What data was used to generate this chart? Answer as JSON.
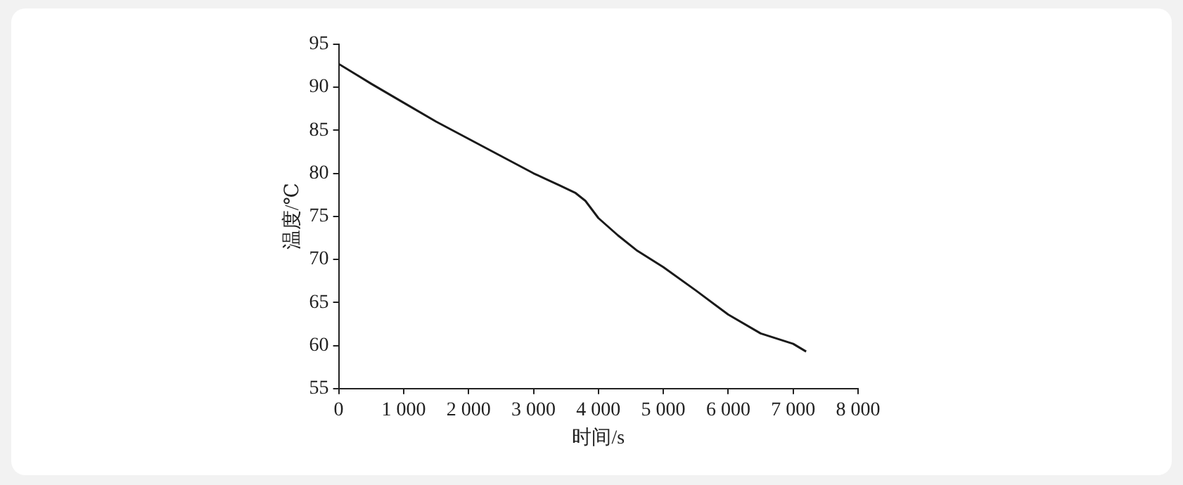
{
  "chart_data": {
    "type": "line",
    "xlabel": "时间/s",
    "ylabel": "温度/℃",
    "x": [
      0,
      500,
      1000,
      1500,
      2000,
      2500,
      3000,
      3400,
      3650,
      3800,
      4000,
      4300,
      4600,
      5000,
      5500,
      6000,
      6500,
      7000,
      7200
    ],
    "series": [
      {
        "color": "#1a1a1a",
        "values": [
          92.7,
          90.4,
          88.2,
          86.0,
          84.0,
          82.0,
          80.0,
          78.6,
          77.7,
          76.8,
          74.8,
          72.8,
          71.0,
          69.1,
          66.4,
          63.6,
          61.4,
          60.2,
          59.3
        ]
      }
    ],
    "xlim": [
      0,
      8000
    ],
    "xticks": [
      {
        "value": 0,
        "label": "0"
      },
      {
        "value": 1000,
        "label": "1 000"
      },
      {
        "value": 2000,
        "label": "2 000"
      },
      {
        "value": 3000,
        "label": "3 000"
      },
      {
        "value": 4000,
        "label": "4 000"
      },
      {
        "value": 5000,
        "label": "5 000"
      },
      {
        "value": 6000,
        "label": "6 000"
      },
      {
        "value": 7000,
        "label": "7 000"
      },
      {
        "value": 8000,
        "label": "8 000"
      }
    ],
    "ylim": [
      55,
      95
    ],
    "yticks": [
      55,
      60,
      65,
      70,
      75,
      80,
      85,
      90,
      95
    ],
    "grid": false,
    "legend": false,
    "marker": "none",
    "line_style": "solid"
  }
}
